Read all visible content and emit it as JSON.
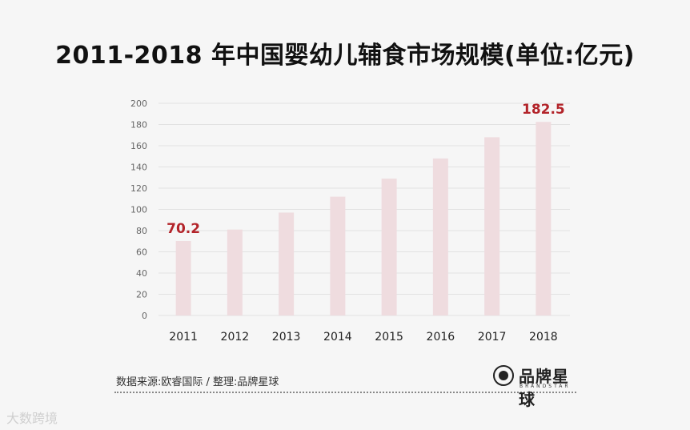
{
  "chart_data": {
    "type": "bar",
    "title": "2011-2018 年中国婴幼儿辅食市场规模(单位:亿元)",
    "categories": [
      "2011",
      "2012",
      "2013",
      "2014",
      "2015",
      "2016",
      "2017",
      "2018"
    ],
    "values": [
      70.2,
      81,
      97,
      112,
      129,
      148,
      168,
      182.5
    ],
    "ylim": [
      0,
      200
    ],
    "yticks": [
      0,
      20,
      40,
      60,
      80,
      100,
      120,
      140,
      160,
      180,
      200
    ],
    "data_labels": [
      {
        "index": 0,
        "text": "70.2"
      },
      {
        "index": 7,
        "text": "182.5"
      }
    ],
    "xlabel": "",
    "ylabel": "",
    "grid": true,
    "bar_color": "#efdcdf",
    "label_color": "#b3242a"
  },
  "footer": {
    "source": "数据来源:欧睿国际 / 整理:品牌星球",
    "brand_name": "品牌星球",
    "brand_sub": "BRANDSTAR"
  },
  "watermark": "大数跨境"
}
